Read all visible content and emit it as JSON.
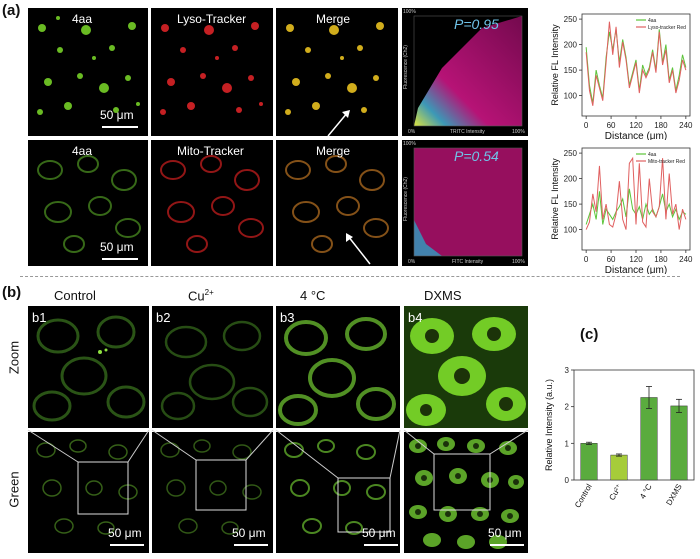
{
  "panel_a": {
    "letter": "(a)",
    "row1": {
      "labels": [
        "4aa",
        "Lyso-Tracker",
        "Merge"
      ],
      "scale_bar": "50 μm",
      "p_value": "P=0.95",
      "scatter_axes": {
        "y_top": "100%",
        "y_label": "Fluorescence (Ch2)",
        "x_left": "0%",
        "x_label": "TRITC Intensity",
        "x_right": "100%"
      }
    },
    "row2": {
      "labels": [
        "4aa",
        "Mito-Tracker",
        "Merge"
      ],
      "scale_bar": "50 μm",
      "p_value": "P=0.54",
      "scatter_axes": {
        "y_top": "100%",
        "y_label": "Fluorescence (Ch2)",
        "x_left": "0%",
        "x_label": "FITC Intensity",
        "x_right": "100%"
      }
    }
  },
  "profile_charts": {
    "ylabel": "Relative FL Intensity",
    "xlabel": "Distance (μm)",
    "x_ticks": [
      "0",
      "60",
      "120",
      "180",
      "240"
    ],
    "top": {
      "legend": [
        "4aa",
        "Lyso-tracker Red"
      ],
      "y_ticks": [
        "100",
        "150",
        "200",
        "250"
      ]
    },
    "bottom": {
      "legend": [
        "4aa",
        "Mito-tracker Red"
      ],
      "y_ticks": [
        "100",
        "150",
        "200",
        "250"
      ]
    }
  },
  "panel_b": {
    "letter": "(b)",
    "columns": [
      "Control",
      "Cu",
      "4 °C",
      "DXMS"
    ],
    "cu_superscript": "2+",
    "tile_labels": [
      "b1",
      "b2",
      "b3",
      "b4"
    ],
    "row_labels": [
      "Zoom",
      "Green"
    ],
    "scale_bar": "50 μm"
  },
  "panel_c": {
    "letter": "(c)"
  },
  "colors": {
    "green_cells": "#7ddc2a",
    "red_cells": "#e8262a",
    "merge": "#e8c020",
    "scatter": "#c0147c",
    "p_text": "#6fc3e8",
    "line_green": "#5cc43a",
    "line_red": "#e06060",
    "bar_green": "#5aab3e",
    "bar_light": "#a6cc3a"
  },
  "chart_data": [
    {
      "type": "line",
      "title": "",
      "xlabel": "Distance (μm)",
      "ylabel": "Relative FL Intensity",
      "xlim": [
        -10,
        250
      ],
      "ylim": [
        60,
        260
      ],
      "x_ticks": [
        0,
        60,
        120,
        180,
        240
      ],
      "y_ticks": [
        100,
        150,
        200,
        250
      ],
      "legend_position": "top-right",
      "x": [
        0,
        8,
        16,
        24,
        32,
        40,
        48,
        56,
        64,
        72,
        80,
        88,
        96,
        104,
        112,
        120,
        128,
        136,
        144,
        152,
        160,
        168,
        176,
        184,
        192,
        200,
        208,
        216,
        224,
        232,
        240
      ],
      "series": [
        {
          "name": "4aa",
          "values": [
            195,
            120,
            85,
            150,
            120,
            95,
            175,
            225,
            190,
            230,
            165,
            210,
            175,
            120,
            145,
            170,
            110,
            160,
            140,
            155,
            190,
            150,
            230,
            165,
            200,
            130,
            155,
            110,
            140,
            180,
            155
          ]
        },
        {
          "name": "Lyso-tracker Red",
          "values": [
            185,
            110,
            80,
            140,
            115,
            90,
            165,
            245,
            180,
            235,
            155,
            205,
            170,
            115,
            140,
            165,
            105,
            150,
            135,
            150,
            185,
            145,
            225,
            160,
            190,
            125,
            150,
            105,
            130,
            170,
            150
          ]
        }
      ]
    },
    {
      "type": "line",
      "title": "",
      "xlabel": "Distance (μm)",
      "ylabel": "Relative FL Intensity",
      "xlim": [
        -10,
        250
      ],
      "ylim": [
        60,
        260
      ],
      "x_ticks": [
        0,
        60,
        120,
        180,
        240
      ],
      "y_ticks": [
        100,
        150,
        200,
        250
      ],
      "legend_position": "top-right",
      "x": [
        0,
        8,
        16,
        24,
        32,
        40,
        48,
        56,
        64,
        72,
        80,
        88,
        96,
        104,
        112,
        120,
        128,
        136,
        144,
        152,
        160,
        168,
        176,
        184,
        192,
        200,
        208,
        216,
        224,
        232,
        240
      ],
      "series": [
        {
          "name": "4aa",
          "values": [
            110,
            130,
            150,
            120,
            175,
            110,
            140,
            130,
            120,
            135,
            145,
            160,
            125,
            180,
            140,
            130,
            145,
            120,
            150,
            130,
            140,
            125,
            145,
            170,
            135,
            150,
            125,
            140,
            120,
            135,
            130
          ]
        },
        {
          "name": "Mito-tracker Red",
          "values": [
            100,
            115,
            170,
            135,
            225,
            120,
            150,
            110,
            105,
            130,
            195,
            120,
            100,
            230,
            240,
            110,
            230,
            115,
            105,
            200,
            135,
            125,
            145,
            240,
            120,
            210,
            130,
            150,
            100,
            140,
            120
          ]
        }
      ]
    },
    {
      "type": "bar",
      "title": "",
      "xlabel": "",
      "ylabel": "Relative Intensity (a.u.)",
      "categories": [
        "Control",
        "Cu²⁺",
        "4 °C",
        "DXMS"
      ],
      "values": [
        1.0,
        0.68,
        2.25,
        2.02
      ],
      "errors": [
        0.03,
        0.03,
        0.3,
        0.18
      ],
      "bar_colors": [
        "#5aab3e",
        "#a6cc3a",
        "#5aab3e",
        "#5aab3e"
      ],
      "ylim": [
        0,
        3
      ],
      "y_ticks": [
        0,
        1,
        2,
        3
      ]
    }
  ]
}
